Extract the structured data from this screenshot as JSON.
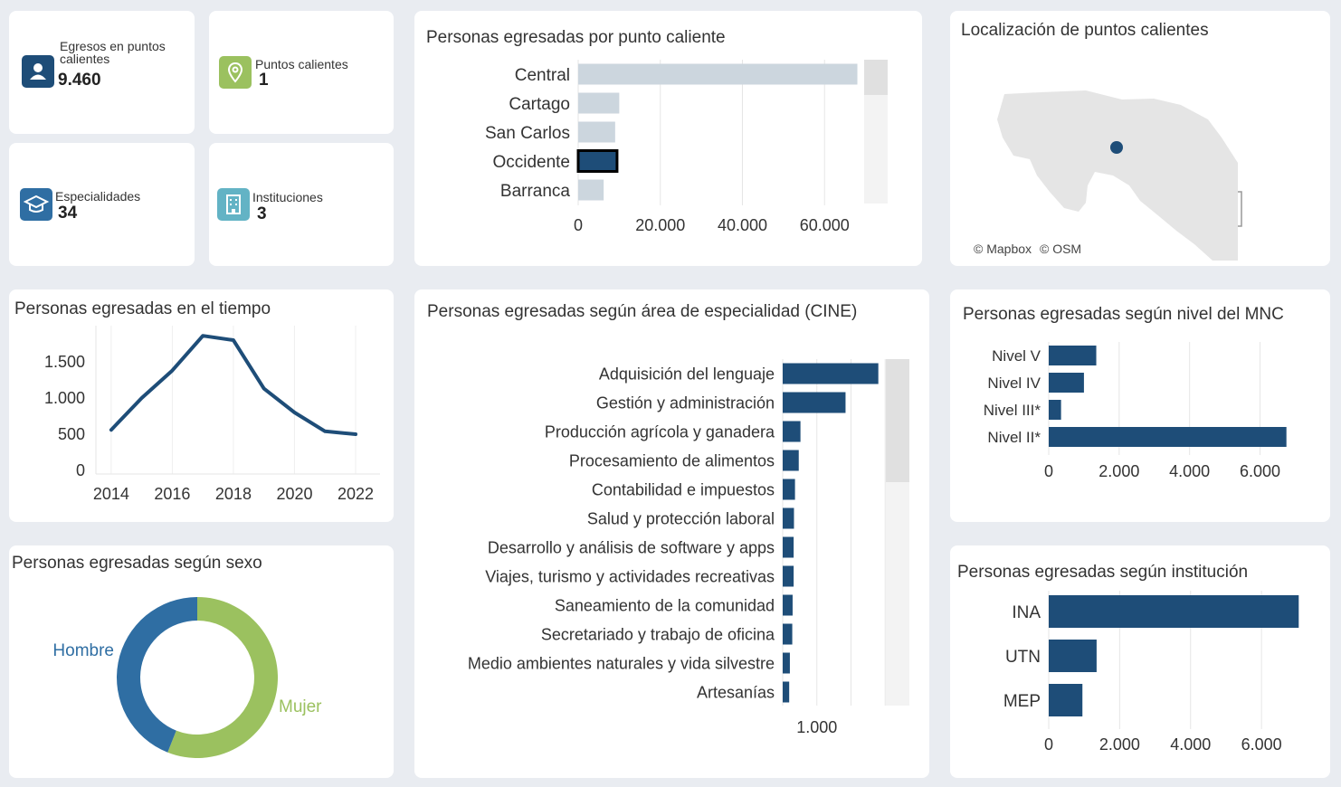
{
  "colors": {
    "navy": "#1e4d78",
    "lightbar": "#ccd6de",
    "green": "#9bc15f",
    "blue": "#2f6ea3",
    "teal": "#63b3c5",
    "grid": "#e6e6e6"
  },
  "kpis": [
    {
      "label_line1": "Egresos en puntos",
      "label_line2": "calientes",
      "value": "9.460",
      "icon": "person-icon"
    },
    {
      "label_line1": "Puntos calientes",
      "label_line2": "",
      "value": "1",
      "icon": "map-pin-icon"
    },
    {
      "label_line1": "Especialidades",
      "label_line2": "",
      "value": "34",
      "icon": "graduation-cap-icon"
    },
    {
      "label_line1": "Instituciones",
      "label_line2": "",
      "value": "3",
      "icon": "building-icon"
    }
  ],
  "map": {
    "title": "Localización de puntos calientes",
    "attribution_mapbox": "© Mapbox",
    "attribution_osm": "© OSM"
  },
  "chart_data": [
    {
      "id": "hotspot",
      "type": "bar",
      "orientation": "horizontal",
      "title": "Personas egresadas por punto caliente",
      "categories": [
        "Central",
        "Cartago",
        "San Carlos",
        "Occidente",
        "Barranca"
      ],
      "values": [
        68000,
        10000,
        9000,
        9460,
        6200
      ],
      "highlighted": "Occidente",
      "xlim": [
        0,
        75000
      ],
      "ticks": [
        0,
        20000,
        40000,
        60000
      ],
      "tick_labels": [
        "0",
        "20.000",
        "40.000",
        "60.000"
      ]
    },
    {
      "id": "time",
      "type": "line",
      "title": "Personas egresadas en el tiempo",
      "x": [
        2014,
        2015,
        2016,
        2017,
        2018,
        2019,
        2020,
        2021,
        2022
      ],
      "y": [
        560,
        1000,
        1380,
        1860,
        1800,
        1130,
        800,
        540,
        500
      ],
      "x_ticks": [
        2014,
        2016,
        2018,
        2020,
        2022
      ],
      "y_ticks": [
        0,
        500,
        1000,
        1500
      ],
      "y_tick_labels": [
        "0",
        "500",
        "1.000",
        "1.500"
      ],
      "ylim": [
        -50,
        2000
      ],
      "xlim": [
        2013.5,
        2022.8
      ]
    },
    {
      "id": "sex",
      "type": "pie",
      "title": "Personas egresadas según sexo",
      "categories": [
        "Mujer",
        "Hombre"
      ],
      "values": [
        56,
        44
      ],
      "colors": [
        "#9bc15f",
        "#2f6ea3"
      ]
    },
    {
      "id": "cine",
      "type": "bar",
      "orientation": "horizontal",
      "title": "Personas egresadas según área de especialidad (CINE)",
      "categories": [
        "Adquisición del lenguaje",
        "Gestión y administración",
        "Producción agrícola y ganadera",
        "Procesamiento de alimentos",
        "Contabilidad e impuestos",
        "Salud y protección laboral",
        "Desarrollo y análisis de software y apps",
        "Viajes, turismo y actividades recreativas",
        "Saneamiento de la comunidad",
        "Secretariado y trabajo de oficina",
        "Medio ambientes naturales y vida silvestre",
        "Artesanías"
      ],
      "values": [
        2800,
        1840,
        520,
        470,
        360,
        330,
        320,
        320,
        290,
        280,
        210,
        190
      ],
      "xlim": [
        0,
        3100
      ],
      "ticks": [
        1000
      ],
      "tick_labels": [
        "1.000"
      ],
      "grid_ticks": [
        1000,
        2000,
        3000
      ]
    },
    {
      "id": "mnc",
      "type": "bar",
      "orientation": "horizontal",
      "title": "Personas egresadas según nivel del MNC",
      "categories": [
        "Nivel V",
        "Nivel IV",
        "Nivel III*",
        "Nivel II*"
      ],
      "values": [
        1350,
        1000,
        350,
        6750
      ],
      "xlim": [
        0,
        7200
      ],
      "ticks": [
        0,
        2000,
        4000,
        6000
      ],
      "tick_labels": [
        "0",
        "2.000",
        "4.000",
        "6.000"
      ]
    },
    {
      "id": "inst",
      "type": "bar",
      "orientation": "horizontal",
      "title": "Personas egresadas según institución",
      "categories": [
        "INA",
        "UTN",
        "MEP"
      ],
      "values": [
        7050,
        1350,
        950
      ],
      "xlim": [
        0,
        7400
      ],
      "ticks": [
        0,
        2000,
        4000,
        6000
      ],
      "tick_labels": [
        "0",
        "2.000",
        "4.000",
        "6.000"
      ]
    }
  ]
}
